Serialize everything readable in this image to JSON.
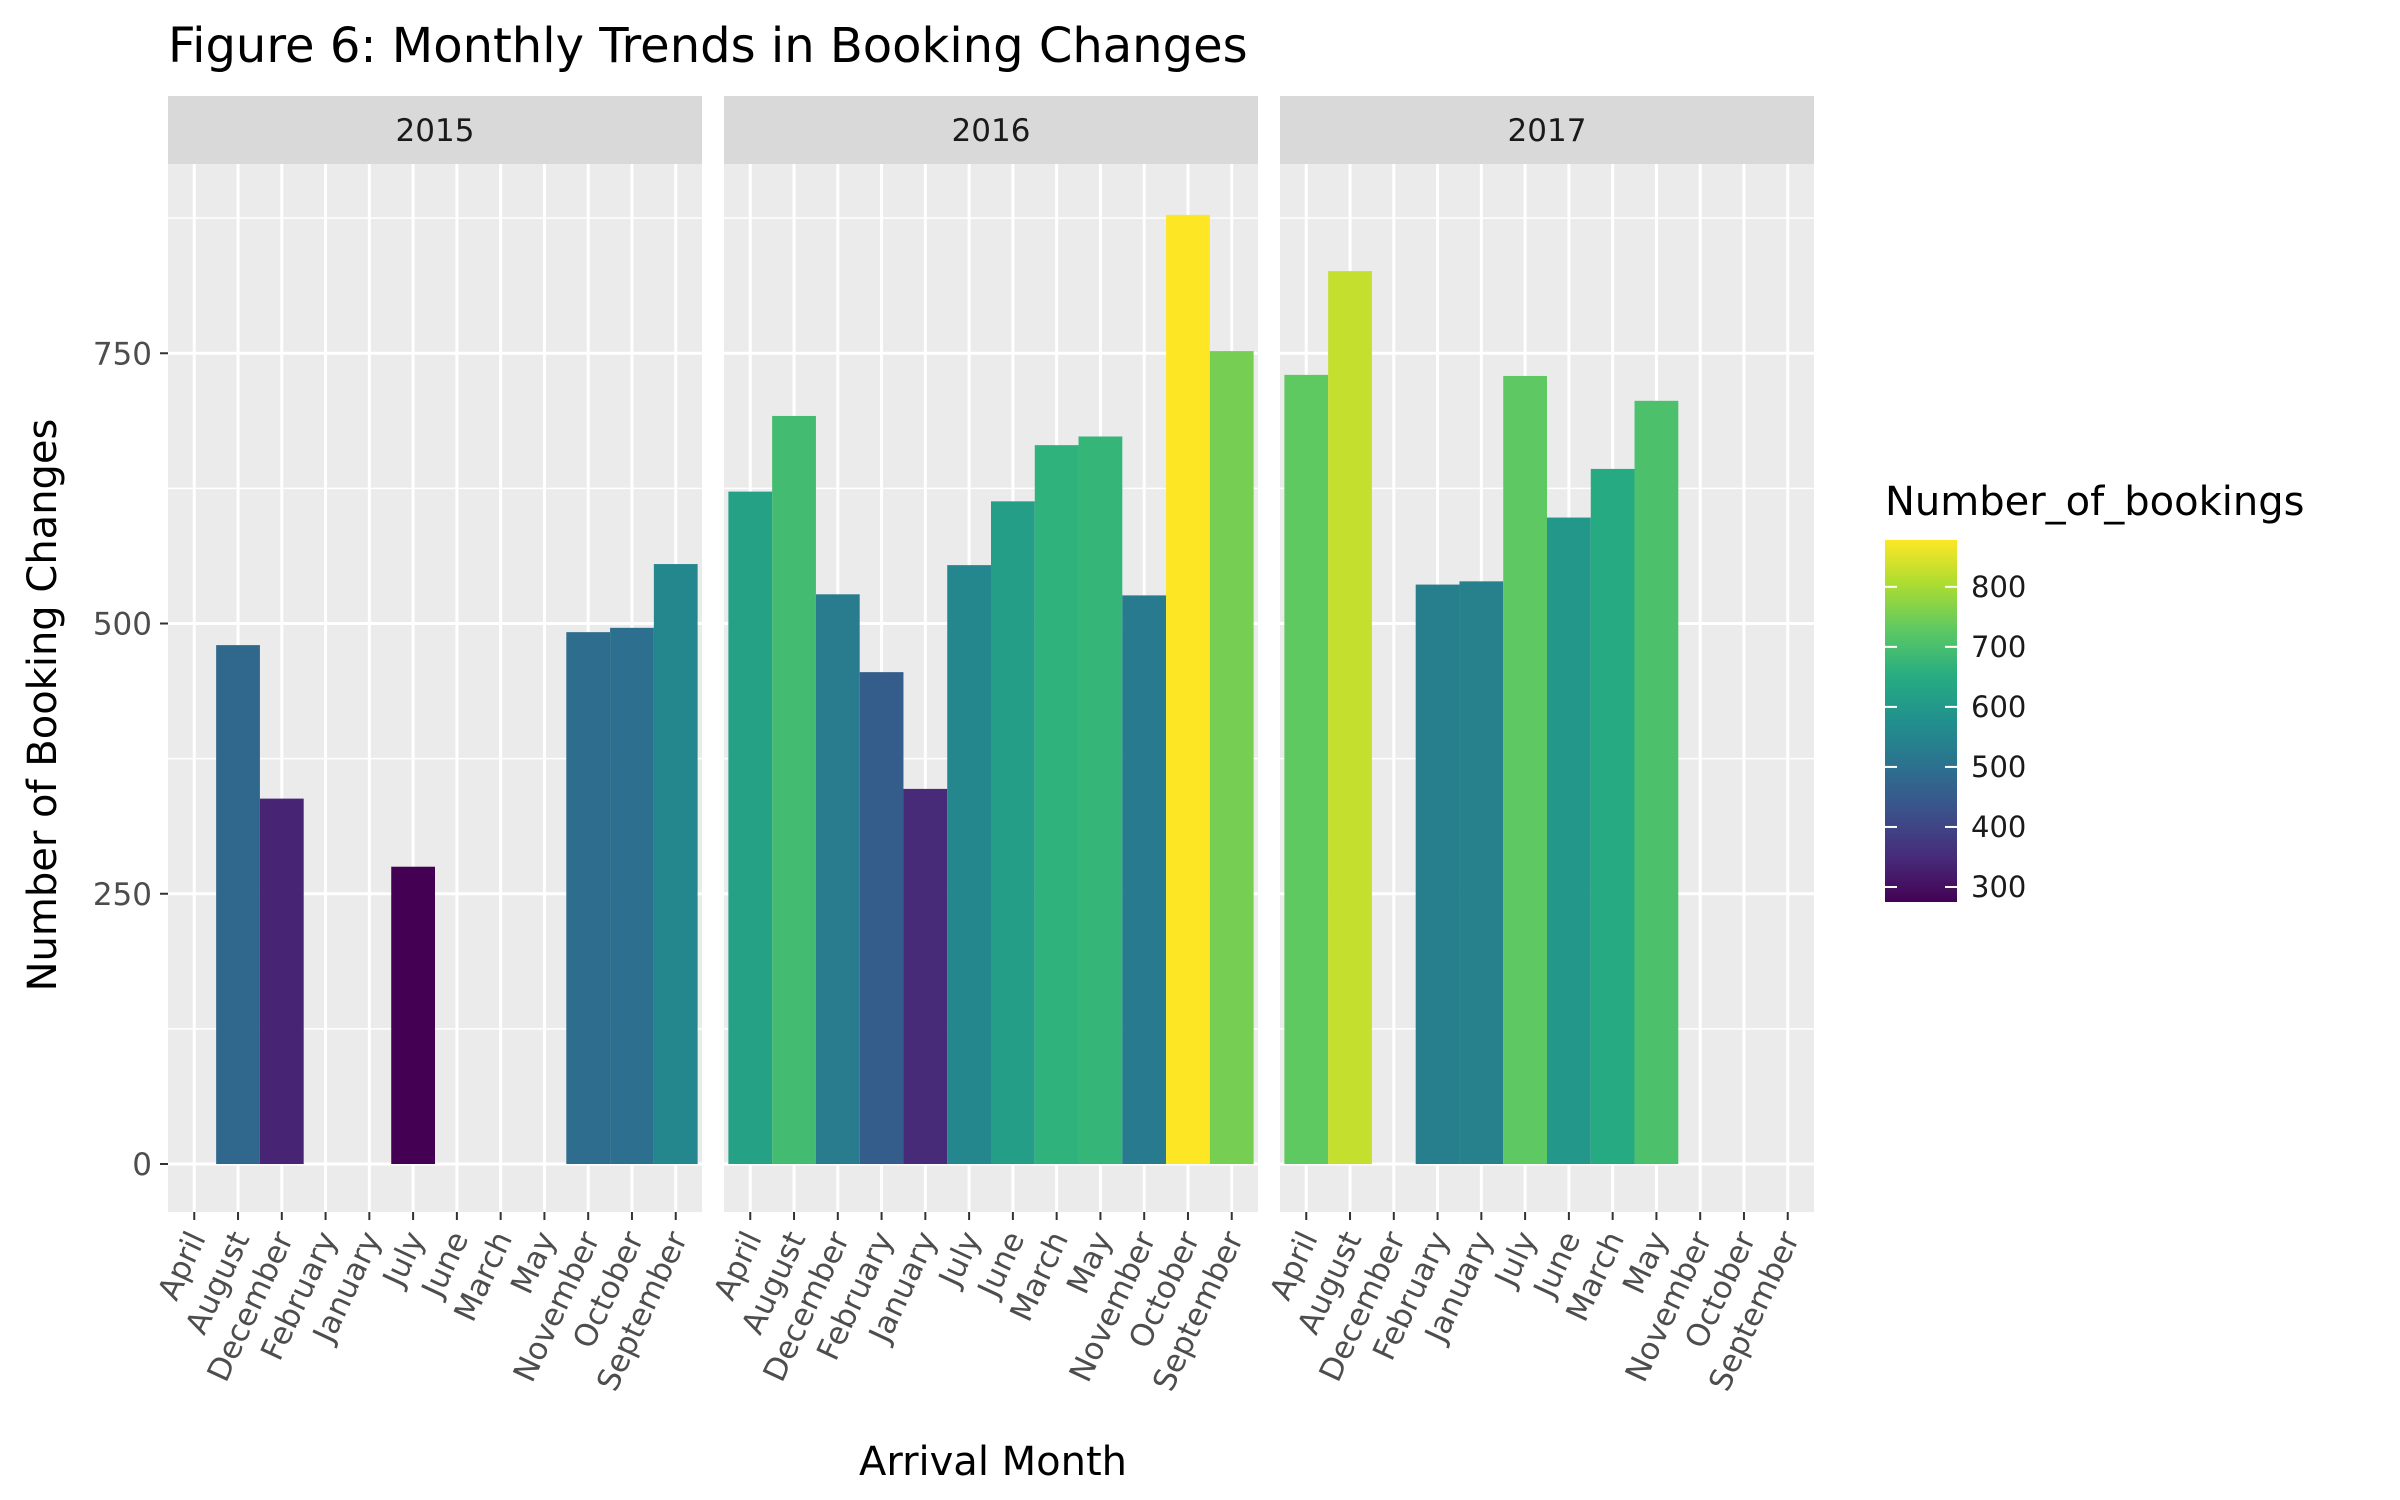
{
  "chart_data": {
    "type": "bar",
    "title": "Figure 6: Monthly Trends in Booking Changes",
    "xlabel": "Arrival Month",
    "ylabel": "Number of Booking Changes",
    "categories": [
      "April",
      "August",
      "December",
      "February",
      "January",
      "July",
      "June",
      "March",
      "May",
      "November",
      "October",
      "September"
    ],
    "ylim": [
      0,
      930
    ],
    "yticks": [
      0,
      250,
      500,
      750
    ],
    "grid": true,
    "legend_position": "right",
    "facet_labels": [
      "2015",
      "2016",
      "2017"
    ],
    "facets": [
      {
        "label": "2015",
        "values": [
          null,
          480,
          338,
          null,
          null,
          275,
          null,
          null,
          null,
          492,
          496,
          555
        ]
      },
      {
        "label": "2016",
        "values": [
          622,
          692,
          527,
          455,
          347,
          554,
          613,
          665,
          673,
          526,
          878,
          752
        ]
      },
      {
        "label": "2017",
        "values": [
          730,
          826,
          null,
          536,
          539,
          729,
          598,
          643,
          706,
          null,
          null,
          null
        ]
      }
    ],
    "fill_variable": "Number_of_bookings",
    "legend": {
      "title": "Number_of_bookings",
      "ticks": [
        300,
        400,
        500,
        600,
        700,
        800
      ],
      "tick_labels": [
        "300",
        "400",
        "500",
        "600",
        "700",
        "800"
      ],
      "range": [
        275,
        878
      ],
      "palette": "viridis"
    },
    "colors": {
      "panel_background": "#ebebeb",
      "strip_background": "#d9d9d9",
      "grid": "#ffffff"
    }
  }
}
